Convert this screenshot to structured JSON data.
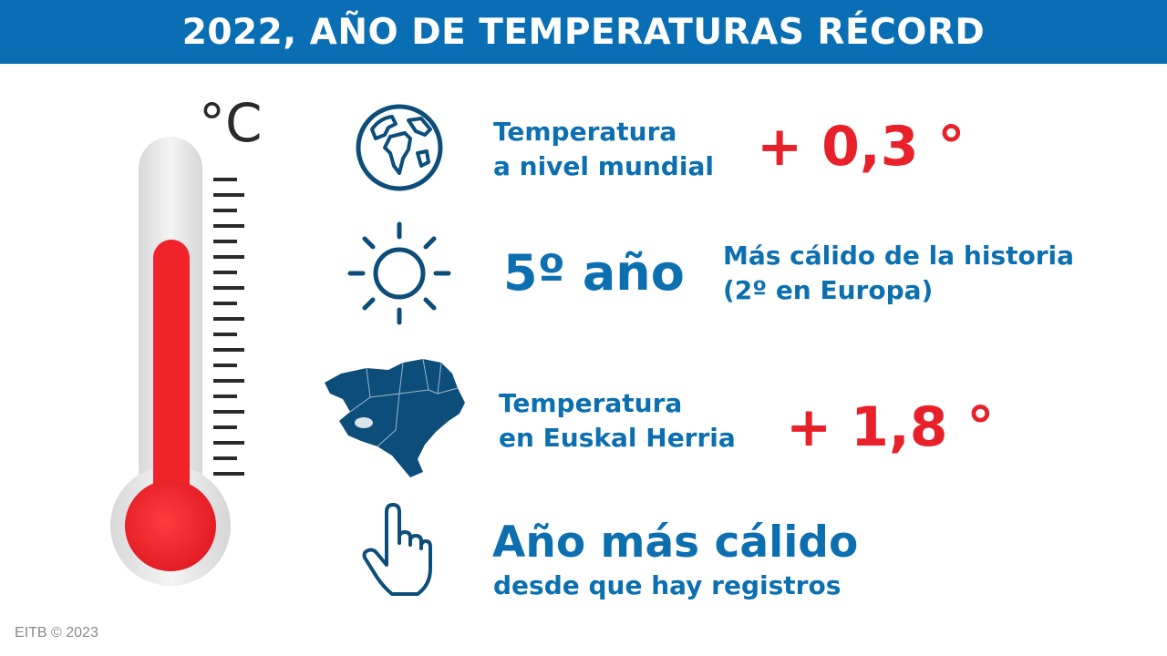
{
  "header": {
    "title": "2022, AÑO DE TEMPERATURAS RÉCORD"
  },
  "thermometer": {
    "unit": "°C",
    "fill_color": "#f0232b",
    "fill_level": 0.75
  },
  "rows": [
    {
      "icon": "globe-icon",
      "label_line1": "Temperatura",
      "label_line2": "a nivel mundial",
      "value": "+ 0,3 °"
    },
    {
      "icon": "sun-icon",
      "big_text": "5º año",
      "label_line1": "Más cálido de la historia",
      "label_line2": "(2º en Europa)"
    },
    {
      "icon": "basque-country-map-icon",
      "label_line1": "Temperatura",
      "label_line2": "en Euskal Herria",
      "value": "+ 1,8 °"
    },
    {
      "icon": "pointing-hand-icon",
      "big_text": "Año más cálido",
      "label_line1": "desde que hay registros"
    }
  ],
  "footer": {
    "credit": "EITB © 2023"
  },
  "colors": {
    "header_bg": "#0a6eb4",
    "blue_text": "#0c6fb0",
    "red_text": "#e8202a",
    "icon_blue": "#0d4d7a"
  }
}
